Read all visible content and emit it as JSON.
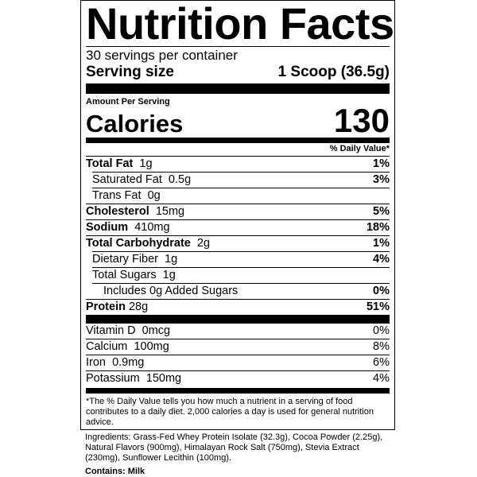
{
  "title": "Nutrition Facts",
  "servings_per_container": "30 servings per container",
  "serving_size": {
    "label": "Serving size",
    "value": "1 Scoop (36.5g)"
  },
  "amount_per_serving": "Amount Per Serving",
  "calories": {
    "label": "Calories",
    "value": "130"
  },
  "daily_value_header": "% Daily Value*",
  "nutrients": [
    {
      "name": "Total Fat",
      "amount": "1g",
      "dv": "1%"
    },
    {
      "name": "Saturated Fat",
      "amount": "0.5g",
      "dv": "3%"
    },
    {
      "name": "Trans Fat",
      "amount": "0g",
      "dv": ""
    },
    {
      "name": "Cholesterol",
      "amount": "15mg",
      "dv": "5%"
    },
    {
      "name": "Sodium",
      "amount": "410mg",
      "dv": "18%"
    },
    {
      "name": "Total Carbohydrate",
      "amount": "2g",
      "dv": "1%"
    },
    {
      "name": "Dietary Fiber",
      "amount": "1g",
      "dv": "4%"
    },
    {
      "name": "Total Sugars",
      "amount": "1g",
      "dv": ""
    },
    {
      "name": "Includes 0g Added Sugars",
      "amount": "",
      "dv": "0%"
    },
    {
      "name": "Protein",
      "amount": "28g",
      "dv": "51%"
    }
  ],
  "vitamins": [
    {
      "name": "Vitamin D",
      "amount": "0mcg",
      "dv": "0%"
    },
    {
      "name": "Calcium",
      "amount": "100mg",
      "dv": "8%"
    },
    {
      "name": "Iron",
      "amount": "0.9mg",
      "dv": "6%"
    },
    {
      "name": "Potassium",
      "amount": "150mg",
      "dv": "4%"
    }
  ],
  "footnote": "*The % Daily Value tells you how much a nutrient in a serving of food contributes to a daily diet. 2,000 calories a day is used for general nutrition advice.",
  "ingredients": "Ingredients: Grass-Fed Whey Protein Isolate (32.3g), Cocoa Powder (2.25g), Natural Flavors (900mg), Himalayan Rock Salt (750mg), Stevia Extract (230mg), Sunflower Lecithin (100mg).",
  "contains": "Contains: Milk"
}
